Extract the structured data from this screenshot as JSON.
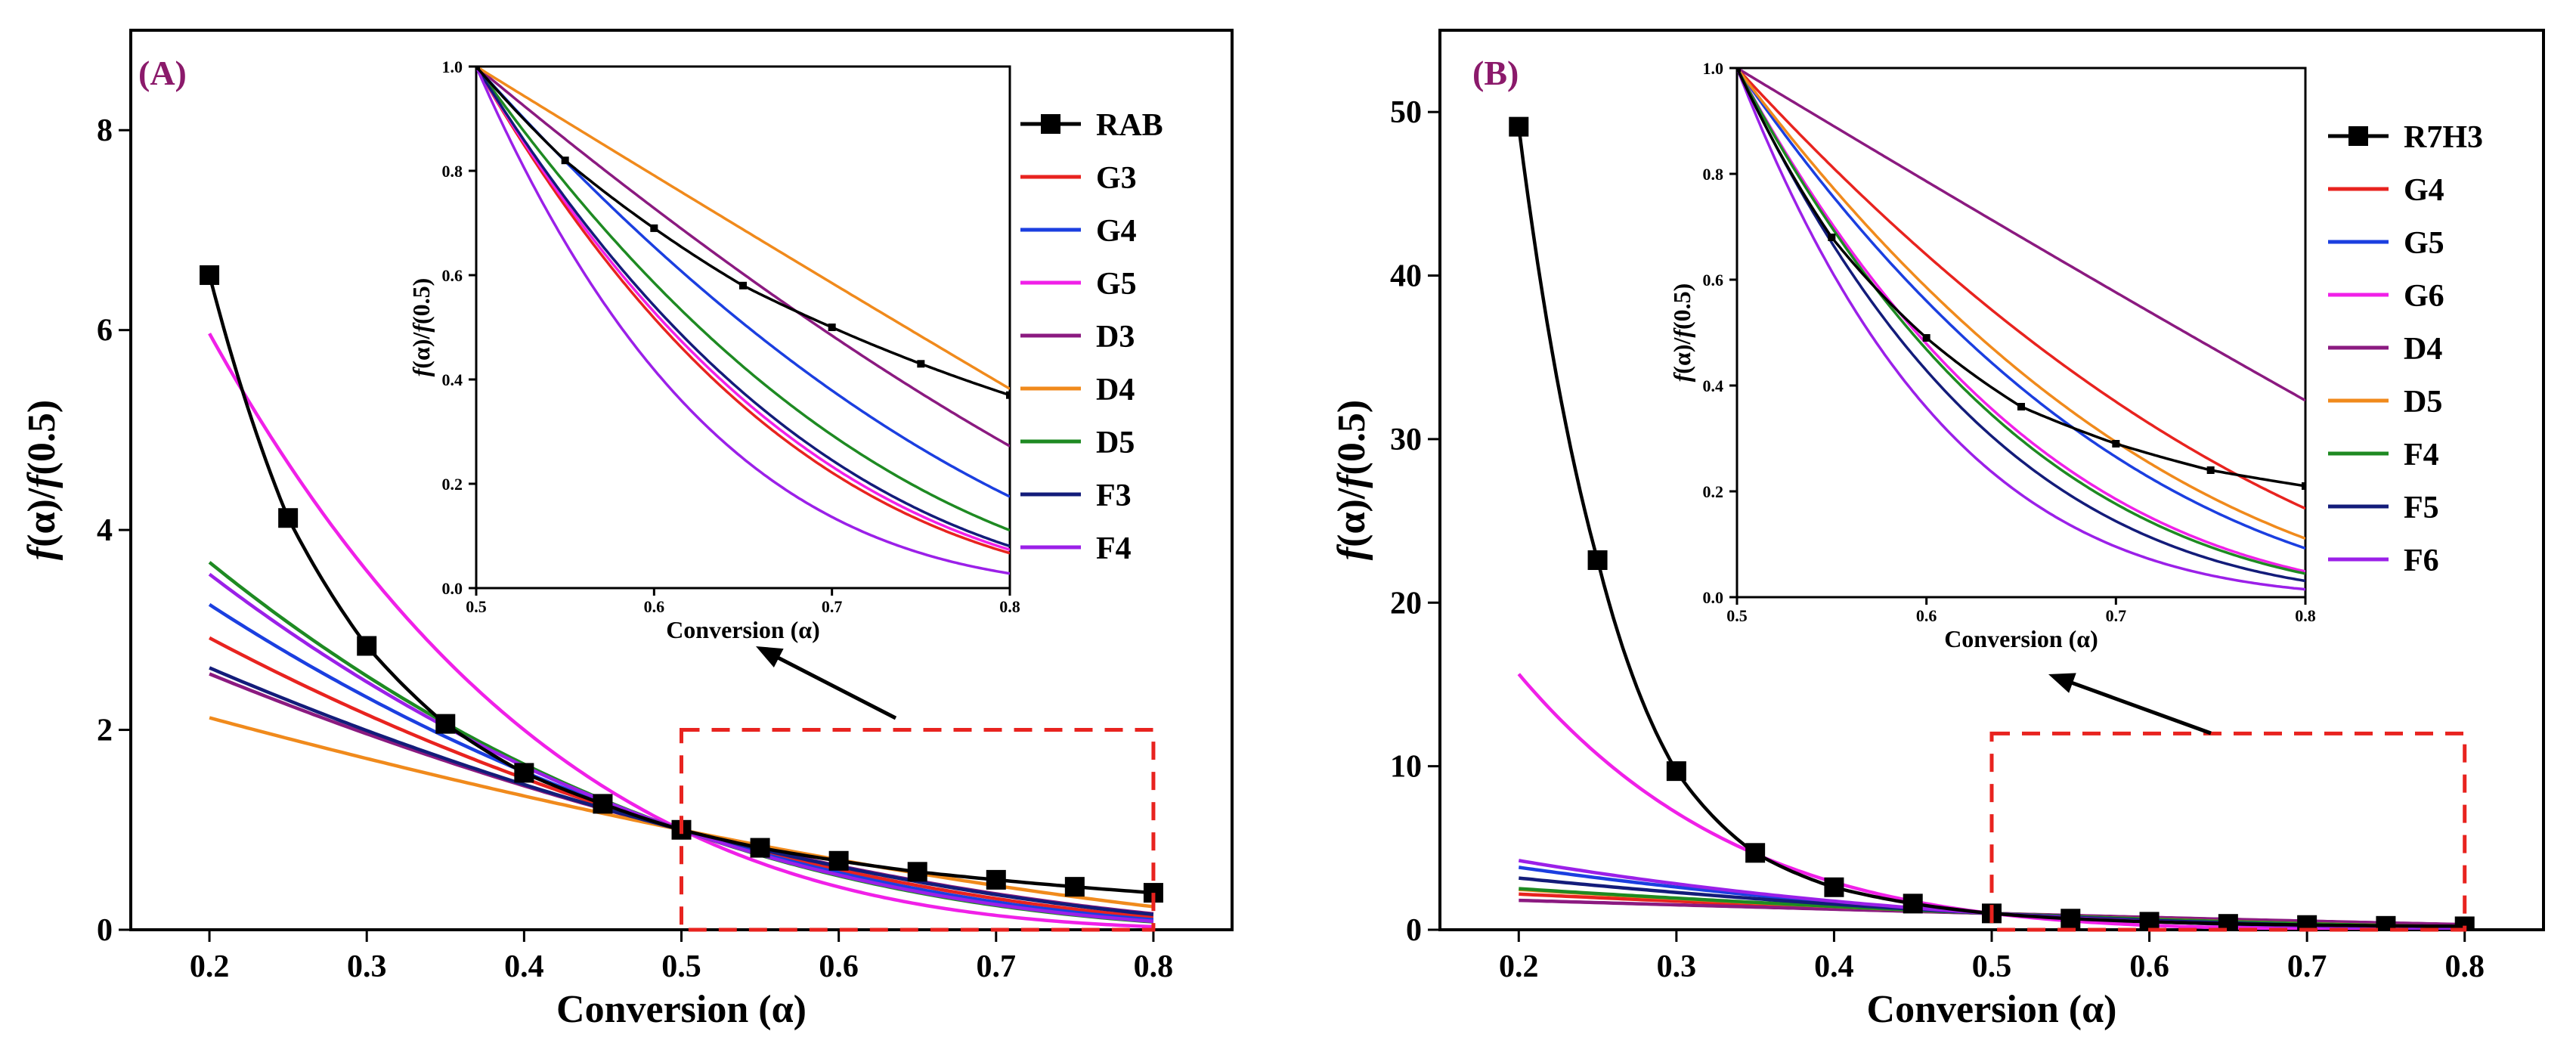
{
  "chart_data": [
    {
      "type": "line",
      "panel_label": "(A)",
      "xlabel": "Conversion (α)",
      "ylabel_parts": [
        "f",
        "(α)/",
        "f",
        "(0.5)"
      ],
      "xlim": [
        0.15,
        0.85
      ],
      "ylim": [
        0,
        9
      ],
      "xticks": [
        0.2,
        0.3,
        0.4,
        0.5,
        0.6,
        0.7,
        0.8
      ],
      "yticks": [
        0,
        2,
        4,
        6,
        8
      ],
      "xtick_labels": [
        "0.2",
        "0.3",
        "0.4",
        "0.5",
        "0.6",
        "0.7",
        "0.8"
      ],
      "ytick_labels": [
        "0",
        "2",
        "4",
        "6",
        "8"
      ],
      "experimental": {
        "name": "RAB",
        "color": "#000000",
        "x": [
          0.2,
          0.25,
          0.3,
          0.35,
          0.4,
          0.45,
          0.5,
          0.55,
          0.6,
          0.65,
          0.7,
          0.75,
          0.8
        ],
        "values": [
          6.55,
          4.12,
          2.84,
          2.06,
          1.57,
          1.26,
          1.0,
          0.82,
          0.69,
          0.58,
          0.5,
          0.43,
          0.37
        ]
      },
      "models": [
        {
          "name": "G3",
          "color": "#E8231F"
        },
        {
          "name": "G4",
          "color": "#1B3FE0"
        },
        {
          "name": "G5",
          "color": "#F020E8"
        },
        {
          "name": "D3",
          "color": "#8B1A80"
        },
        {
          "name": "D4",
          "color": "#F08A1C"
        },
        {
          "name": "D5",
          "color": "#1E8A22"
        },
        {
          "name": "F3",
          "color": "#131C7A"
        },
        {
          "name": "F4",
          "color": "#9B20E8"
        }
      ],
      "highlight_box": {
        "x": [
          0.5,
          0.8
        ],
        "y": [
          0,
          2
        ]
      },
      "inset": {
        "xlabel": "Conversion (α)",
        "ylabel_parts": [
          "f",
          "(α)/",
          "f",
          "(0.5)"
        ],
        "xlim": [
          0.5,
          0.8
        ],
        "ylim": [
          0,
          1.0
        ],
        "xticks": [
          0.5,
          0.6,
          0.7,
          0.8
        ],
        "yticks": [
          0.0,
          0.2,
          0.4,
          0.6,
          0.8,
          1.0
        ],
        "xtick_labels": [
          "0.5",
          "0.6",
          "0.7",
          "0.8"
        ],
        "ytick_labels": [
          "0.0",
          "0.2",
          "0.4",
          "0.6",
          "0.8",
          "1.0"
        ]
      }
    },
    {
      "type": "line",
      "panel_label": "(B)",
      "xlabel": "Conversion (α)",
      "ylabel_parts": [
        "f",
        "(α)/",
        "f",
        "(0.5)"
      ],
      "xlim": [
        0.15,
        0.85
      ],
      "ylim": [
        0,
        55
      ],
      "xticks": [
        0.2,
        0.3,
        0.4,
        0.5,
        0.6,
        0.7,
        0.8
      ],
      "yticks": [
        0,
        10,
        20,
        30,
        40,
        50
      ],
      "xtick_labels": [
        "0.2",
        "0.3",
        "0.4",
        "0.5",
        "0.6",
        "0.7",
        "0.8"
      ],
      "ytick_labels": [
        "0",
        "10",
        "20",
        "30",
        "40",
        "50"
      ],
      "experimental": {
        "name": "R7H3",
        "color": "#000000",
        "x": [
          0.2,
          0.25,
          0.3,
          0.35,
          0.4,
          0.45,
          0.5,
          0.55,
          0.6,
          0.65,
          0.7,
          0.75,
          0.8
        ],
        "values": [
          49.1,
          22.6,
          9.7,
          4.7,
          2.6,
          1.6,
          1.0,
          0.68,
          0.49,
          0.36,
          0.29,
          0.24,
          0.21
        ]
      },
      "models": [
        {
          "name": "G4",
          "color": "#E8231F"
        },
        {
          "name": "G5",
          "color": "#1B3FE0"
        },
        {
          "name": "G6",
          "color": "#F020E8"
        },
        {
          "name": "D4",
          "color": "#8B1A80"
        },
        {
          "name": "D5",
          "color": "#F08A1C"
        },
        {
          "name": "F4",
          "color": "#1E8A22"
        },
        {
          "name": "F5",
          "color": "#131C7A"
        },
        {
          "name": "F6",
          "color": "#9B20E8"
        }
      ],
      "highlight_box": {
        "x": [
          0.5,
          0.8
        ],
        "y": [
          0,
          12
        ]
      },
      "inset": {
        "xlabel": "Conversion (α)",
        "ylabel_parts": [
          "f",
          "(α)/",
          "f",
          "(0.5)"
        ],
        "xlim": [
          0.5,
          0.8
        ],
        "ylim": [
          0,
          1.0
        ],
        "xticks": [
          0.5,
          0.6,
          0.7,
          0.8
        ],
        "yticks": [
          0.0,
          0.2,
          0.4,
          0.6,
          0.8,
          1.0
        ],
        "xtick_labels": [
          "0.5",
          "0.6",
          "0.7",
          "0.8"
        ],
        "ytick_labels": [
          "0.0",
          "0.2",
          "0.4",
          "0.6",
          "0.8",
          "1.0"
        ]
      }
    }
  ]
}
